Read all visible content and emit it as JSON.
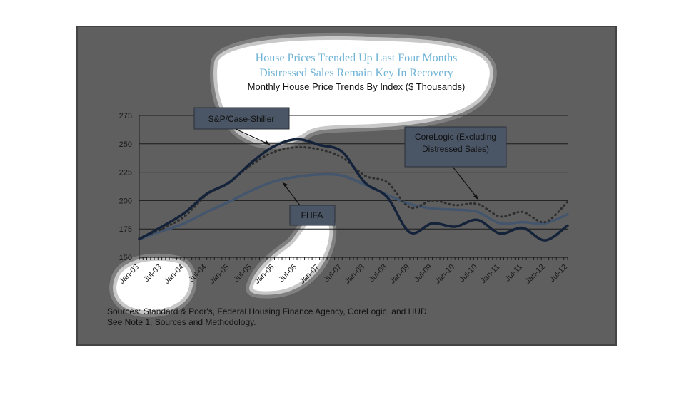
{
  "chart_data": {
    "type": "line",
    "title_lines": [
      "House Prices Trended Up Last Four Months",
      "Distressed Sales Remain Key In Recovery"
    ],
    "subtitle": "Monthly House Price Trends By Index ($ Thousands)",
    "xlabel": "",
    "ylabel": "",
    "ylim": [
      150,
      275
    ],
    "yticks": [
      150,
      175,
      200,
      225,
      250,
      275
    ],
    "grid": true,
    "xtick_labels": [
      "Jan-03",
      "Jul-03",
      "Jan-04",
      "Jul-04",
      "Jan-05",
      "Jul-05",
      "Jan-06",
      "Jul-06",
      "Jan-07",
      "Jul-07",
      "Jan-08",
      "Jul-08",
      "Jan-09",
      "Jul-09",
      "Jan-10",
      "Jul-10",
      "Jan-11",
      "Jul-11",
      "Jan-12",
      "Jul-12"
    ],
    "x": [
      "Jan-03",
      "Jul-03",
      "Jan-04",
      "Jul-04",
      "Jan-05",
      "Jul-05",
      "Jan-06",
      "Jul-06",
      "Jan-07",
      "Jul-07",
      "Jan-08",
      "Jul-08",
      "Jan-09",
      "Jul-09",
      "Jan-10",
      "Jul-10",
      "Jan-11",
      "Jul-11",
      "Jan-12",
      "Jul-12"
    ],
    "series": [
      {
        "name": "S&P/Case-Shiller",
        "color": "#14233a",
        "style": "solid",
        "values": [
          166,
          177,
          189,
          206,
          216,
          234,
          248,
          254,
          249,
          243,
          216,
          203,
          172,
          180,
          177,
          183,
          171,
          176,
          165,
          178
        ]
      },
      {
        "name": "FHFA",
        "color": "#44566e",
        "style": "solid",
        "values": [
          166,
          173,
          180,
          190,
          199,
          209,
          217,
          221,
          223,
          222,
          214,
          205,
          197,
          193,
          192,
          190,
          180,
          181,
          180,
          188
        ]
      },
      {
        "name": "CoreLogic (Excluding Distressed Sales)",
        "color": "#2e2e2e",
        "style": "dotted",
        "values": [
          167,
          175,
          186,
          205,
          216,
          232,
          243,
          247,
          245,
          238,
          222,
          216,
          194,
          200,
          196,
          197,
          186,
          190,
          181,
          199
        ]
      }
    ],
    "callouts": [
      {
        "label": "S&P/Case-Shiller"
      },
      {
        "label": "CoreLogic (Excluding Distressed Sales)",
        "lines": [
          "CoreLogic (Excluding",
          "Distressed Sales)"
        ]
      },
      {
        "label": "FHFA"
      }
    ],
    "sources": [
      "Sources:  Standard & Poor's, Federal Housing Finance Agency, CoreLogic, and HUD.",
      "See Note 1, Sources and Methodology."
    ]
  },
  "colors": {
    "page_background": "#ffffff",
    "panel_background": "#5f5f5f",
    "highlight": "#ffffff",
    "title": "#6fb3d6"
  }
}
